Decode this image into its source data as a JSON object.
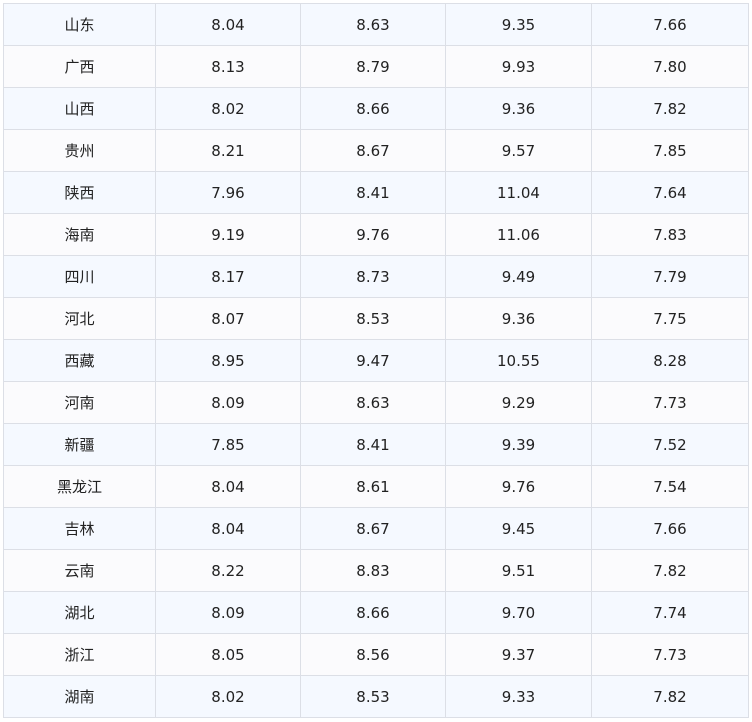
{
  "table": {
    "rows": [
      [
        "山东",
        "8.04",
        "8.63",
        "9.35",
        "7.66"
      ],
      [
        "广西",
        "8.13",
        "8.79",
        "9.93",
        "7.80"
      ],
      [
        "山西",
        "8.02",
        "8.66",
        "9.36",
        "7.82"
      ],
      [
        "贵州",
        "8.21",
        "8.67",
        "9.57",
        "7.85"
      ],
      [
        "陕西",
        "7.96",
        "8.41",
        "11.04",
        "7.64"
      ],
      [
        "海南",
        "9.19",
        "9.76",
        "11.06",
        "7.83"
      ],
      [
        "四川",
        "8.17",
        "8.73",
        "9.49",
        "7.79"
      ],
      [
        "河北",
        "8.07",
        "8.53",
        "9.36",
        "7.75"
      ],
      [
        "西藏",
        "8.95",
        "9.47",
        "10.55",
        "8.28"
      ],
      [
        "河南",
        "8.09",
        "8.63",
        "9.29",
        "7.73"
      ],
      [
        "新疆",
        "7.85",
        "8.41",
        "9.39",
        "7.52"
      ],
      [
        "黑龙江",
        "8.04",
        "8.61",
        "9.76",
        "7.54"
      ],
      [
        "吉林",
        "8.04",
        "8.67",
        "9.45",
        "7.66"
      ],
      [
        "云南",
        "8.22",
        "8.83",
        "9.51",
        "7.82"
      ],
      [
        "湖北",
        "8.09",
        "8.66",
        "9.70",
        "7.74"
      ],
      [
        "浙江",
        "8.05",
        "8.56",
        "9.37",
        "7.73"
      ],
      [
        "湖南",
        "8.02",
        "8.53",
        "9.33",
        "7.82"
      ]
    ]
  }
}
